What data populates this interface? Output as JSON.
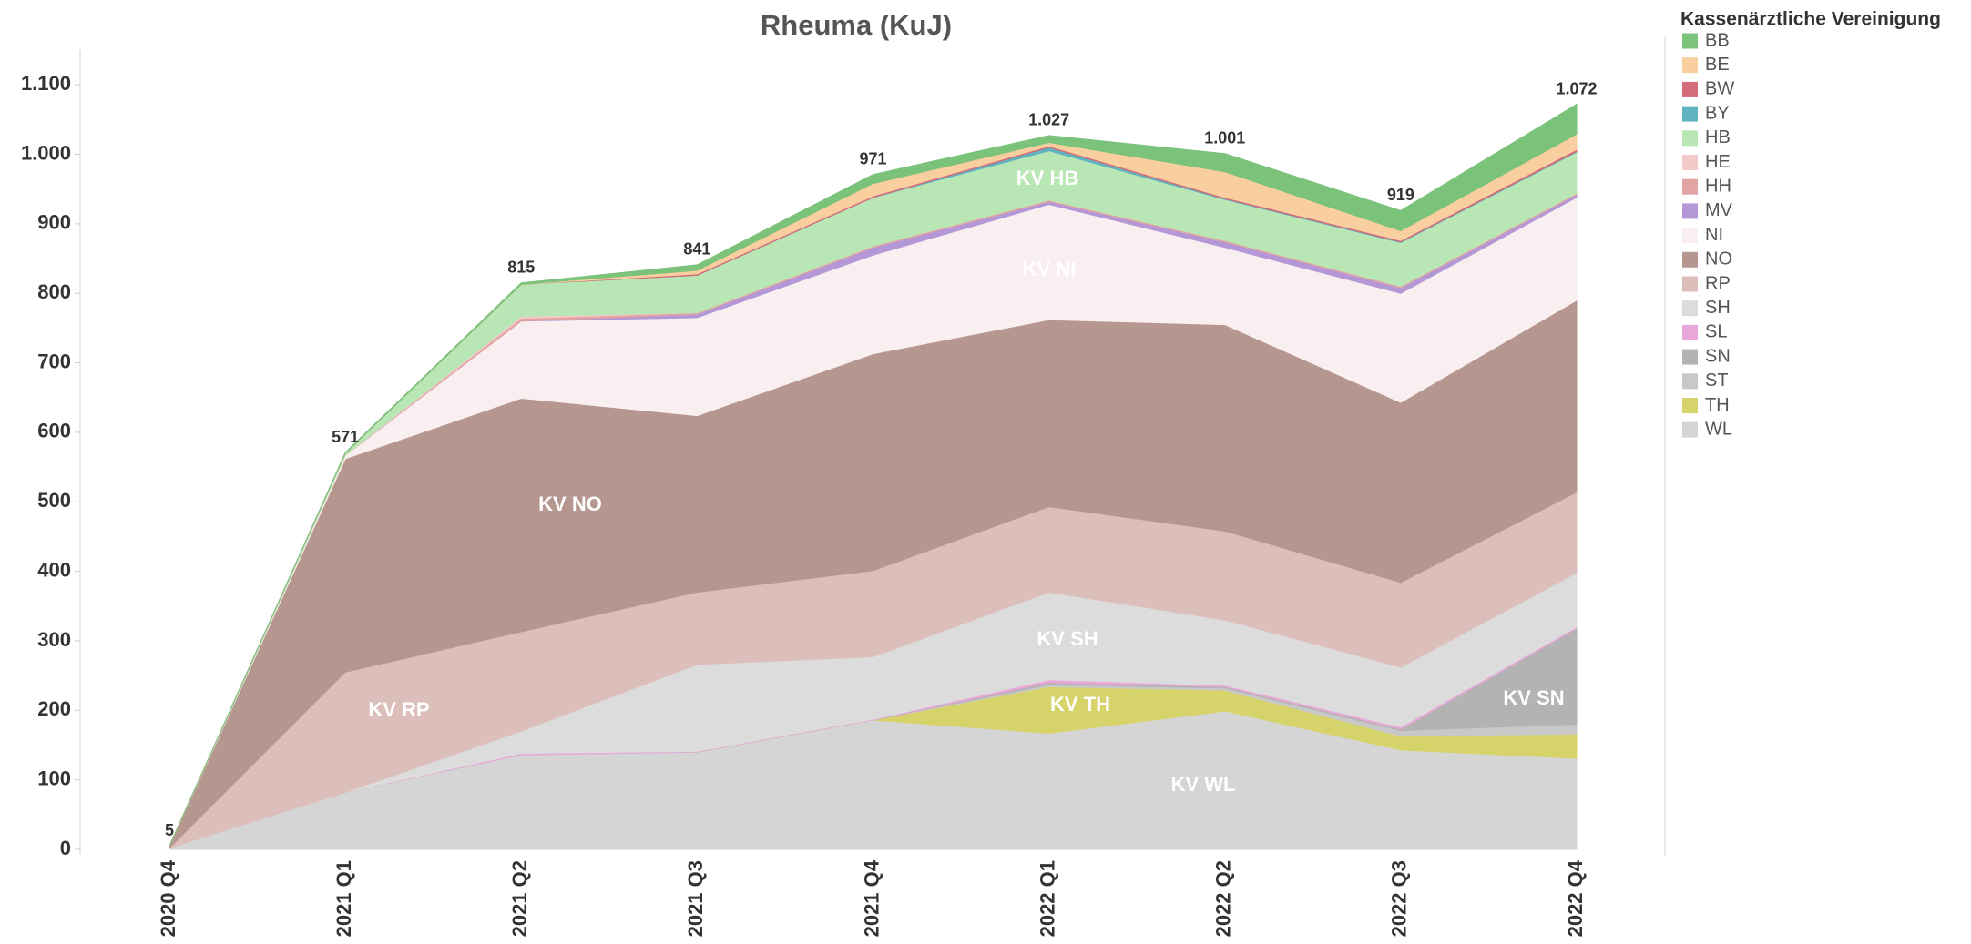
{
  "chart_data": {
    "type": "stacked_area",
    "title": "Rheuma (KuJ)",
    "legend_title": "Kassenärztliche Vereinigung",
    "legend": "right",
    "categories": [
      "2020 Q4",
      "2021 Q1",
      "2021 Q2",
      "2021 Q3",
      "2021 Q4",
      "2022 Q1",
      "2022 Q2",
      "2022 Q3",
      "2022 Q4"
    ],
    "series": [
      {
        "name": "BB",
        "color": "#7bc27a",
        "values": [
          0,
          1,
          2,
          8,
          13,
          10,
          26,
          29,
          43
        ]
      },
      {
        "name": "BE",
        "color": "#f9cfa0",
        "values": [
          0,
          0,
          0,
          5,
          18,
          5,
          37,
          14,
          22
        ]
      },
      {
        "name": "BW",
        "color": "#d46b78",
        "values": [
          0,
          0,
          0,
          2,
          2,
          2,
          2,
          2,
          3
        ]
      },
      {
        "name": "BY",
        "color": "#5fb3c1",
        "values": [
          0,
          0,
          0,
          0,
          0,
          5,
          1,
          1,
          1
        ]
      },
      {
        "name": "HB",
        "color": "#b8e6b4",
        "values": [
          0,
          3,
          46,
          54,
          70,
          71,
          59,
          63,
          59
        ]
      },
      {
        "name": "HE",
        "color": "#f4c9c9",
        "values": [
          0,
          0,
          3,
          0,
          0,
          0,
          0,
          0,
          0
        ]
      },
      {
        "name": "HH",
        "color": "#e2a3a3",
        "values": [
          0,
          0,
          4,
          2,
          2,
          2,
          2,
          2,
          2
        ]
      },
      {
        "name": "MV",
        "color": "#b497d6",
        "values": [
          0,
          0,
          0,
          5,
          11,
          4,
          8,
          8,
          4
        ]
      },
      {
        "name": "NI",
        "color": "#f9eef0",
        "values": [
          0,
          5,
          111,
          141,
          142,
          166,
          111,
          157,
          148
        ]
      },
      {
        "name": "NO",
        "color": "#b6978f",
        "values": [
          3,
          307,
          336,
          254,
          312,
          269,
          297,
          259,
          276
        ]
      },
      {
        "name": "RP",
        "color": "#dcbfba",
        "values": [
          0,
          173,
          143,
          104,
          124,
          123,
          128,
          122,
          116
        ]
      },
      {
        "name": "SH",
        "color": "#dcdcdc",
        "values": [
          0,
          0,
          32,
          125,
          90,
          126,
          94,
          86,
          78
        ]
      },
      {
        "name": "SL",
        "color": "#e9a6d9",
        "values": [
          0,
          0,
          2,
          1,
          1,
          4,
          2,
          3,
          2
        ]
      },
      {
        "name": "SN",
        "color": "#b3b3b3",
        "values": [
          0,
          0,
          0,
          0,
          0,
          3,
          2,
          2,
          138
        ]
      },
      {
        "name": "ST",
        "color": "#c8c8c8",
        "values": [
          0,
          0,
          0,
          0,
          0,
          3,
          3,
          8,
          14
        ]
      },
      {
        "name": "TH",
        "color": "#d5d36a",
        "values": [
          0,
          0,
          0,
          0,
          0,
          67,
          30,
          20,
          35
        ]
      },
      {
        "name": "WL",
        "color": "#d5d5d5",
        "values": [
          2,
          82,
          136,
          140,
          186,
          167,
          199,
          143,
          131
        ]
      }
    ],
    "totals": {
      "values": [
        5,
        571,
        815,
        841,
        971,
        1027,
        1001,
        919,
        1072
      ],
      "value_labels": [
        "5",
        "571",
        "815",
        "841",
        "971",
        "1.027",
        "1.001",
        "919",
        "1.072"
      ]
    },
    "annotations": [
      "KV HB",
      "KV NI",
      "KV NO",
      "KV RP",
      "KV SH",
      "KV TH",
      "KV SN",
      "KV WL"
    ],
    "ylim": [
      0,
      1150
    ],
    "yticks": [
      0,
      100,
      200,
      300,
      400,
      500,
      600,
      700,
      800,
      900,
      {
        "value": 1000,
        "label": "1.000"
      },
      {
        "value": 1100,
        "label": "1.100"
      }
    ]
  }
}
